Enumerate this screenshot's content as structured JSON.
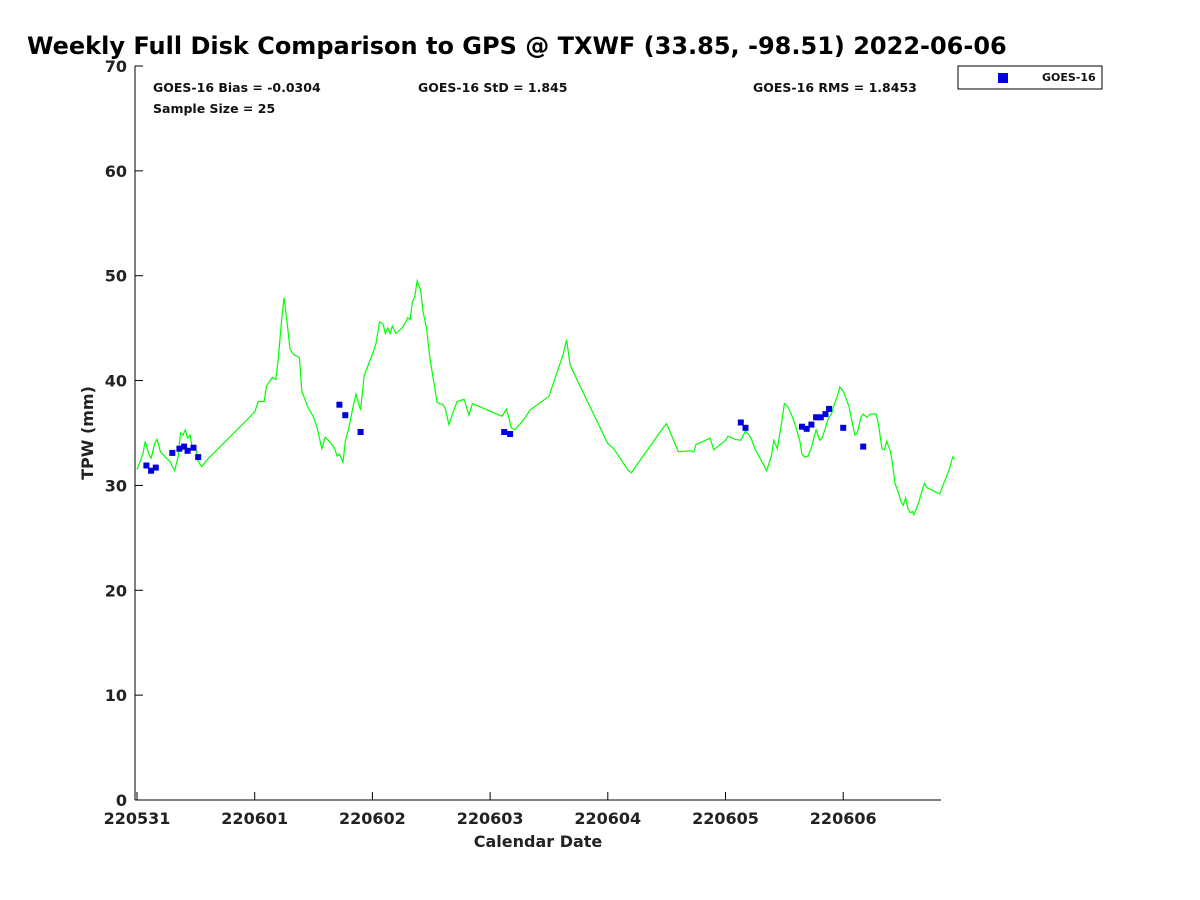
{
  "chart_data": {
    "type": "line",
    "title": "Weekly Full Disk Comparison to GPS @ TXWF (33.85, -98.51) 2022-06-06",
    "xlabel": "Calendar Date",
    "ylabel": "TPW (mm)",
    "x_unit": "days",
    "xlim": [
      0,
      6.8
    ],
    "ylim": [
      0,
      70
    ],
    "x_ticks": [
      {
        "value": 0,
        "label": "220531"
      },
      {
        "value": 1,
        "label": "220601"
      },
      {
        "value": 2,
        "label": "220602"
      },
      {
        "value": 3,
        "label": "220603"
      },
      {
        "value": 4,
        "label": "220604"
      },
      {
        "value": 5,
        "label": "220605"
      },
      {
        "value": 6,
        "label": "220606"
      }
    ],
    "y_ticks": [
      0,
      10,
      20,
      30,
      40,
      50,
      60,
      70
    ],
    "grid": false,
    "legend": {
      "position": "top-right",
      "entries": [
        "GOES-16"
      ]
    },
    "stats": {
      "bias": "GOES-16 Bias = -0.0304",
      "std": "GOES-16 StD = 1.845",
      "rms": "GOES-16 RMS = 1.8453",
      "sample": "Sample Size = 25"
    },
    "series": [
      {
        "kind": "line",
        "color": "#00ff00",
        "points": [
          [
            0.0,
            31.5
          ],
          [
            0.05,
            33.0
          ],
          [
            0.07,
            34.2
          ],
          [
            0.1,
            33.0
          ],
          [
            0.12,
            32.6
          ],
          [
            0.15,
            34.0
          ],
          [
            0.17,
            34.4
          ],
          [
            0.2,
            33.2
          ],
          [
            0.25,
            32.6
          ],
          [
            0.28,
            32.3
          ],
          [
            0.3,
            31.8
          ],
          [
            0.32,
            31.4
          ],
          [
            0.35,
            32.8
          ],
          [
            0.37,
            35.0
          ],
          [
            0.39,
            34.8
          ],
          [
            0.41,
            35.3
          ],
          [
            0.43,
            34.5
          ],
          [
            0.45,
            34.8
          ],
          [
            0.47,
            33.6
          ],
          [
            0.5,
            33.5
          ],
          [
            0.52,
            32.3
          ],
          [
            0.55,
            31.8
          ],
          [
            0.6,
            32.5
          ],
          [
            1.0,
            37.0
          ],
          [
            1.03,
            38.0
          ],
          [
            1.08,
            38.0
          ],
          [
            1.1,
            39.5
          ],
          [
            1.15,
            40.3
          ],
          [
            1.18,
            40.1
          ],
          [
            1.2,
            42.0
          ],
          [
            1.23,
            46.0
          ],
          [
            1.25,
            47.9
          ],
          [
            1.28,
            45.0
          ],
          [
            1.3,
            43.0
          ],
          [
            1.33,
            42.5
          ],
          [
            1.38,
            42.2
          ],
          [
            1.4,
            39.0
          ],
          [
            1.45,
            37.5
          ],
          [
            1.5,
            36.5
          ],
          [
            1.53,
            35.5
          ],
          [
            1.57,
            33.5
          ],
          [
            1.6,
            34.6
          ],
          [
            1.65,
            34.0
          ],
          [
            1.68,
            33.5
          ],
          [
            1.7,
            32.8
          ],
          [
            1.72,
            33.0
          ],
          [
            1.75,
            32.2
          ],
          [
            1.77,
            34.2
          ],
          [
            1.8,
            35.5
          ],
          [
            1.83,
            37.2
          ],
          [
            1.86,
            38.7
          ],
          [
            1.9,
            37.2
          ],
          [
            1.93,
            40.5
          ],
          [
            2.0,
            42.5
          ],
          [
            2.03,
            43.5
          ],
          [
            2.06,
            45.6
          ],
          [
            2.09,
            45.4
          ],
          [
            2.11,
            44.5
          ],
          [
            2.13,
            45.0
          ],
          [
            2.15,
            44.5
          ],
          [
            2.17,
            45.2
          ],
          [
            2.2,
            44.5
          ],
          [
            2.23,
            44.8
          ],
          [
            2.25,
            45.0
          ],
          [
            2.28,
            45.5
          ],
          [
            2.3,
            46.0
          ],
          [
            2.32,
            45.8
          ],
          [
            2.34,
            47.5
          ],
          [
            2.36,
            48.0
          ],
          [
            2.38,
            49.5
          ],
          [
            2.41,
            48.6
          ],
          [
            2.43,
            46.6
          ],
          [
            2.46,
            45.0
          ],
          [
            2.49,
            42.0
          ],
          [
            2.52,
            40.0
          ],
          [
            2.55,
            37.9
          ],
          [
            2.6,
            37.7
          ],
          [
            2.62,
            37.3
          ],
          [
            2.65,
            35.8
          ],
          [
            2.68,
            36.8
          ],
          [
            2.72,
            38.0
          ],
          [
            2.78,
            38.2
          ],
          [
            2.82,
            36.7
          ],
          [
            2.85,
            37.8
          ],
          [
            3.1,
            36.6
          ],
          [
            3.14,
            37.3
          ],
          [
            3.18,
            35.5
          ],
          [
            3.21,
            35.3
          ],
          [
            3.25,
            35.8
          ],
          [
            3.3,
            36.5
          ],
          [
            3.34,
            37.2
          ],
          [
            3.5,
            38.5
          ],
          [
            3.62,
            42.5
          ],
          [
            3.65,
            43.9
          ],
          [
            3.68,
            41.5
          ],
          [
            3.75,
            39.8
          ],
          [
            4.0,
            34.0
          ],
          [
            4.05,
            33.5
          ],
          [
            4.17,
            31.5
          ],
          [
            4.2,
            31.2
          ],
          [
            4.47,
            35.5
          ],
          [
            4.5,
            35.9
          ],
          [
            4.6,
            33.2
          ],
          [
            4.7,
            33.3
          ],
          [
            4.73,
            33.2
          ],
          [
            4.75,
            33.9
          ],
          [
            4.87,
            34.5
          ],
          [
            4.9,
            33.4
          ],
          [
            5.0,
            34.3
          ],
          [
            5.02,
            34.7
          ],
          [
            5.08,
            34.4
          ],
          [
            5.13,
            34.3
          ],
          [
            5.17,
            35.2
          ],
          [
            5.2,
            34.8
          ],
          [
            5.22,
            34.4
          ],
          [
            5.25,
            33.5
          ],
          [
            5.35,
            31.4
          ],
          [
            5.39,
            32.8
          ],
          [
            5.41,
            34.3
          ],
          [
            5.44,
            33.5
          ],
          [
            5.47,
            35.5
          ],
          [
            5.5,
            37.8
          ],
          [
            5.53,
            37.5
          ],
          [
            5.57,
            36.5
          ],
          [
            5.6,
            35.5
          ],
          [
            5.63,
            34.3
          ],
          [
            5.65,
            33.0
          ],
          [
            5.67,
            32.7
          ],
          [
            5.7,
            32.8
          ],
          [
            5.73,
            33.6
          ],
          [
            5.75,
            34.5
          ],
          [
            5.77,
            35.3
          ],
          [
            5.8,
            34.3
          ],
          [
            5.82,
            34.5
          ],
          [
            5.85,
            35.5
          ],
          [
            5.87,
            36.3
          ],
          [
            5.9,
            36.8
          ],
          [
            5.92,
            37.6
          ],
          [
            5.95,
            38.5
          ],
          [
            5.97,
            39.4
          ],
          [
            6.0,
            39.0
          ],
          [
            6.02,
            38.4
          ],
          [
            6.05,
            37.5
          ],
          [
            6.08,
            35.8
          ],
          [
            6.1,
            34.8
          ],
          [
            6.12,
            35.0
          ],
          [
            6.15,
            36.5
          ],
          [
            6.17,
            36.8
          ],
          [
            6.2,
            36.5
          ],
          [
            6.23,
            36.8
          ],
          [
            6.28,
            36.8
          ],
          [
            6.3,
            35.8
          ],
          [
            6.33,
            33.5
          ],
          [
            6.35,
            33.4
          ],
          [
            6.37,
            34.2
          ],
          [
            6.4,
            33.3
          ],
          [
            6.42,
            32.0
          ],
          [
            6.44,
            30.2
          ],
          [
            6.47,
            29.3
          ],
          [
            6.49,
            28.5
          ],
          [
            6.51,
            28.1
          ],
          [
            6.53,
            28.8
          ],
          [
            6.55,
            27.8
          ],
          [
            6.57,
            27.4
          ],
          [
            6.59,
            27.5
          ],
          [
            6.6,
            27.2
          ],
          [
            6.63,
            28.0
          ],
          [
            6.69,
            30.2
          ],
          [
            6.71,
            29.8
          ],
          [
            6.78,
            29.4
          ],
          [
            6.82,
            29.2
          ],
          [
            6.9,
            31.5
          ],
          [
            6.93,
            32.7
          ],
          [
            6.95,
            32.5
          ]
        ]
      },
      {
        "name": "GOES-16",
        "kind": "scatter",
        "color": "#0000e0",
        "points": [
          [
            0.08,
            31.9
          ],
          [
            0.12,
            31.4
          ],
          [
            0.16,
            31.7
          ],
          [
            0.3,
            33.1
          ],
          [
            0.36,
            33.5
          ],
          [
            0.4,
            33.7
          ],
          [
            0.43,
            33.3
          ],
          [
            0.48,
            33.6
          ],
          [
            0.52,
            32.7
          ],
          [
            1.72,
            37.7
          ],
          [
            1.77,
            36.7
          ],
          [
            1.9,
            35.1
          ],
          [
            3.12,
            35.1
          ],
          [
            3.17,
            34.9
          ],
          [
            5.13,
            36.0
          ],
          [
            5.17,
            35.5
          ],
          [
            5.65,
            35.6
          ],
          [
            5.69,
            35.4
          ],
          [
            5.73,
            35.8
          ],
          [
            5.77,
            36.5
          ],
          [
            5.81,
            36.5
          ],
          [
            5.85,
            36.8
          ],
          [
            5.88,
            37.3
          ],
          [
            6.0,
            35.5
          ],
          [
            6.17,
            33.7
          ]
        ]
      }
    ]
  }
}
